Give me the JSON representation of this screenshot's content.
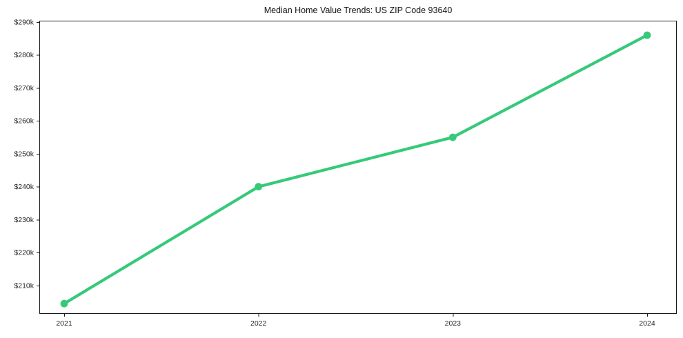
{
  "chart_data": {
    "type": "line",
    "title": "Median Home Value Trends: US ZIP Code 93640",
    "categories": [
      "2021",
      "2022",
      "2023",
      "2024"
    ],
    "values": [
      204500,
      240000,
      255000,
      286000
    ],
    "xlabel": "",
    "ylabel": "",
    "ylim": [
      201400,
      290400
    ],
    "yticks": [
      {
        "value": 210000,
        "label": "$210k"
      },
      {
        "value": 220000,
        "label": "$220k"
      },
      {
        "value": 230000,
        "label": "$230k"
      },
      {
        "value": 240000,
        "label": "$240k"
      },
      {
        "value": 250000,
        "label": "$250k"
      },
      {
        "value": 260000,
        "label": "$260k"
      },
      {
        "value": 270000,
        "label": "$270k"
      },
      {
        "value": 280000,
        "label": "$280k"
      },
      {
        "value": 290000,
        "label": "$290k"
      }
    ],
    "grid": false,
    "legend_position": "none",
    "marker": "circle",
    "colors": {
      "line": "#36c97a",
      "axis": "#1a1a1a",
      "tick_text": "#262626",
      "title_text": "#111111",
      "background": "#ffffff"
    }
  }
}
